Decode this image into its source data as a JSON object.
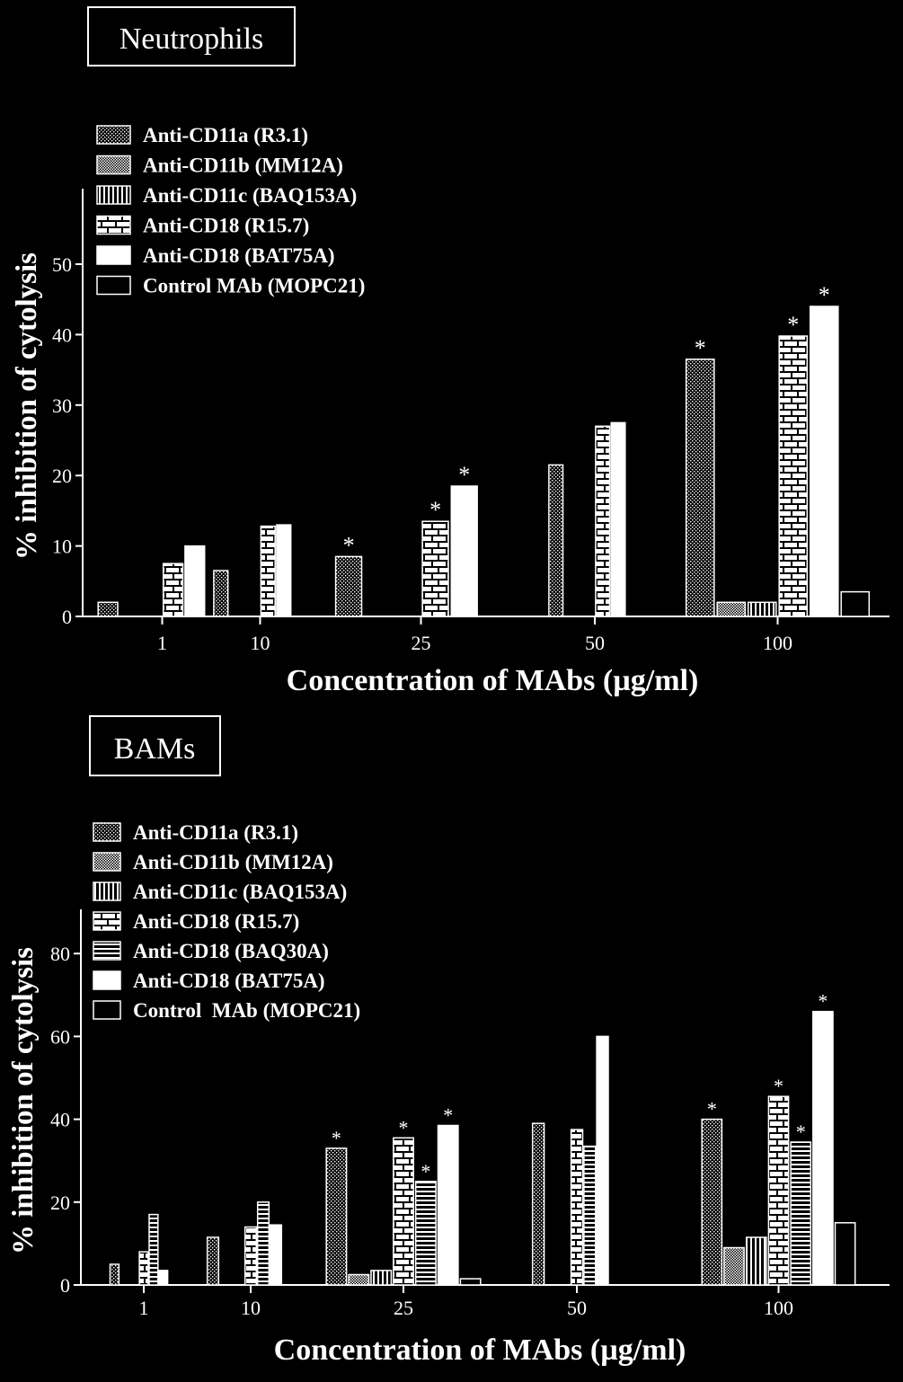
{
  "chart_data": [
    {
      "type": "bar",
      "title": "Neutrophils",
      "xlabel": "Concentration of MAbs (µg/ml)",
      "ylabel": "% inhibition of cytolysis",
      "ylim": [
        0,
        55
      ],
      "yticks": [
        "0",
        "10",
        "20",
        "30",
        "40",
        "50"
      ],
      "categories": [
        "1",
        "10",
        "25",
        "50",
        "100"
      ],
      "legend_position": "top-left",
      "grid": false,
      "significance_marker": "*",
      "series": [
        {
          "name": "Anti-CD11a (R3.1)",
          "pattern": "dots",
          "values": [
            2,
            6.5,
            8.5,
            21.5,
            36.5
          ],
          "significant": [
            false,
            false,
            true,
            false,
            true
          ]
        },
        {
          "name": "Anti-CD11b (MM12A)",
          "pattern": "crosshatch",
          "values": [
            0,
            0,
            0,
            0,
            2
          ],
          "significant": [
            false,
            false,
            false,
            false,
            false
          ]
        },
        {
          "name": "Anti-CD11c (BAQ153A)",
          "pattern": "vlines",
          "values": [
            0,
            0,
            0,
            0,
            2
          ],
          "significant": [
            false,
            false,
            false,
            false,
            false
          ]
        },
        {
          "name": "Anti-CD18 (R15.7)",
          "pattern": "brick",
          "values": [
            7.5,
            12.8,
            13.5,
            27,
            39.8
          ],
          "significant": [
            false,
            false,
            true,
            false,
            true
          ]
        },
        {
          "name": "Anti-CD18 (BAT75A)",
          "pattern": "solid",
          "values": [
            10,
            13,
            18.5,
            27.5,
            44
          ],
          "significant": [
            false,
            false,
            true,
            false,
            true
          ]
        },
        {
          "name": "Control MAb (MOPC21)",
          "pattern": "empty",
          "values": [
            0,
            0,
            0,
            0,
            3.5
          ],
          "significant": [
            false,
            false,
            false,
            false,
            false
          ]
        }
      ]
    },
    {
      "type": "bar",
      "title": "BAMs",
      "xlabel": "Concentration of MAbs (µg/ml)",
      "ylabel": "% inhibition of cytolysis",
      "ylim": [
        0,
        90
      ],
      "yticks": [
        "0",
        "20",
        "40",
        "60",
        "80"
      ],
      "categories": [
        "1",
        "10",
        "25",
        "50",
        "100"
      ],
      "legend_position": "top-left",
      "grid": false,
      "significance_marker": "*",
      "series": [
        {
          "name": "Anti-CD11a (R3.1)",
          "pattern": "dots",
          "values": [
            5,
            11.5,
            33,
            39,
            40
          ],
          "significant": [
            false,
            false,
            true,
            false,
            true
          ]
        },
        {
          "name": "Anti-CD11b (MM12A)",
          "pattern": "crosshatch",
          "values": [
            0,
            0,
            2.5,
            0,
            9
          ],
          "significant": [
            false,
            false,
            false,
            false,
            false
          ]
        },
        {
          "name": "Anti-CD11c (BAQ153A)",
          "pattern": "vlines",
          "values": [
            0,
            0,
            3.5,
            0,
            11.5
          ],
          "significant": [
            false,
            false,
            false,
            false,
            false
          ]
        },
        {
          "name": "Anti-CD18 (R15.7)",
          "pattern": "brick",
          "values": [
            8,
            14,
            35.5,
            37.5,
            45.5
          ],
          "significant": [
            false,
            false,
            true,
            false,
            true
          ]
        },
        {
          "name": "Anti-CD18 (BAQ30A)",
          "pattern": "hlines",
          "values": [
            17,
            20,
            25,
            33.5,
            34.5
          ],
          "significant": [
            false,
            false,
            true,
            false,
            true
          ]
        },
        {
          "name": "Anti-CD18 (BAT75A)",
          "pattern": "solid",
          "values": [
            3.5,
            14.5,
            38.5,
            60,
            66
          ],
          "significant": [
            false,
            false,
            true,
            false,
            true
          ]
        },
        {
          "name": "Control  MAb (MOPC21)",
          "pattern": "empty",
          "values": [
            0,
            0,
            1.5,
            0,
            15
          ],
          "significant": [
            false,
            false,
            false,
            false,
            false
          ]
        }
      ]
    }
  ]
}
